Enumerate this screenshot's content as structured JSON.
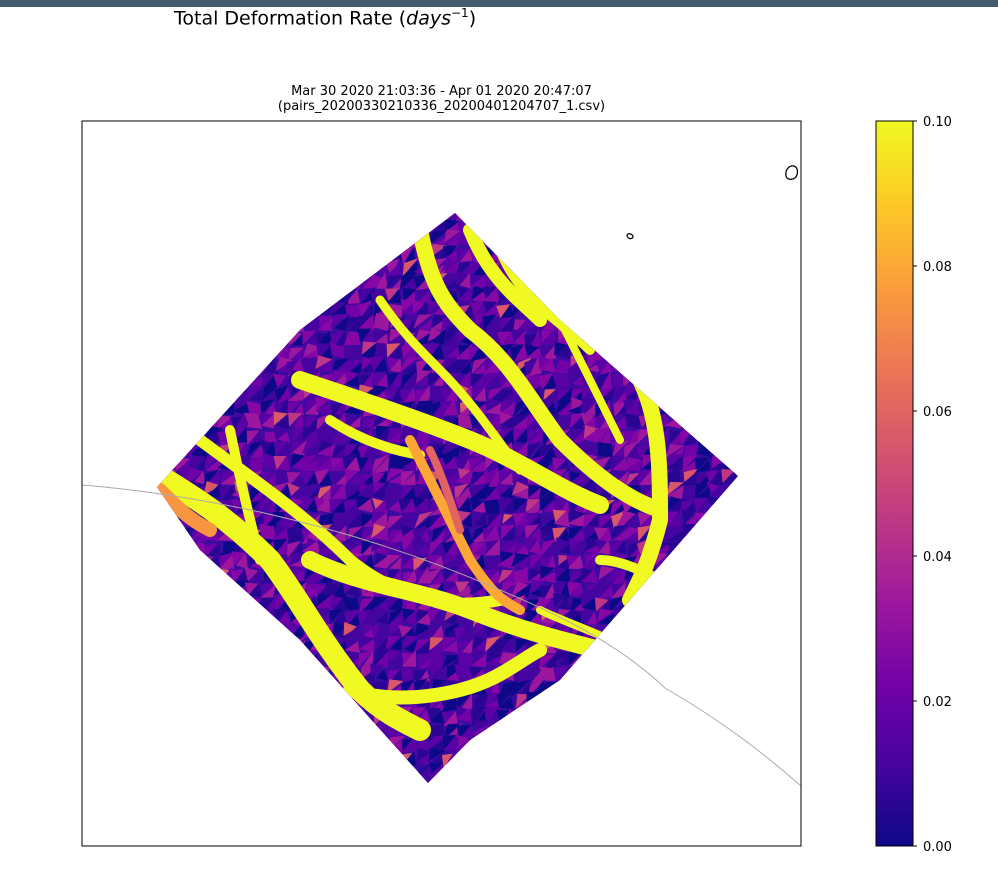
{
  "figure": {
    "title_prefix": "Total Deformation Rate (",
    "title_unit_base": "days",
    "title_unit_exp": "−1",
    "title_suffix": ")"
  },
  "axes": {
    "title_line1": "Mar 30 2020 21:03:36 - Apr 01 2020 20:47:07",
    "title_line2": "(pairs_20200330210336_20200401204707_1.csv)"
  },
  "colors": {
    "colormap": "plasma",
    "stops": [
      "#0d0887",
      "#46039f",
      "#7201a8",
      "#9c179e",
      "#bd3786",
      "#d8576b",
      "#ed7953",
      "#fb9f3a",
      "#fdca26",
      "#f0f921"
    ],
    "coastline": "#000000",
    "track_line": "#aaaaaa"
  },
  "chart_data": {
    "type": "heatmap",
    "title": "Total Deformation Rate (days^-1)",
    "colorbar": {
      "range": [
        0.0,
        0.1
      ],
      "ticks": [
        "0.00",
        "0.02",
        "0.04",
        "0.06",
        "0.08",
        "0.10"
      ],
      "cmap": "plasma",
      "extend": "max"
    },
    "x_ticks": [],
    "y_ticks": [],
    "grid": false
  }
}
